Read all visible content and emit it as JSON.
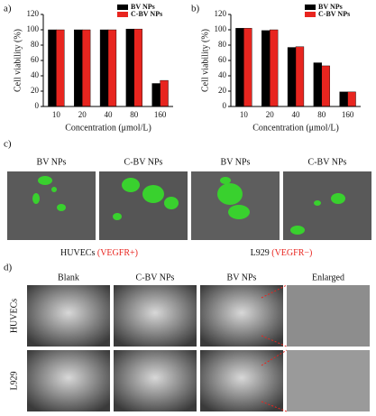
{
  "chart_data": [
    {
      "type": "bar",
      "panel": "a)",
      "categories": [
        "10",
        "20",
        "40",
        "80",
        "160"
      ],
      "series": [
        {
          "name": "BV NPs",
          "color": "#000000",
          "values": [
            100,
            100,
            100,
            101,
            30
          ]
        },
        {
          "name": "C-BV NPs",
          "color": "#e8251f",
          "values": [
            100,
            100,
            100,
            101,
            34
          ]
        }
      ],
      "ylim": [
        0,
        120
      ],
      "yticks": [
        0,
        20,
        40,
        60,
        80,
        100,
        120
      ],
      "ylabel": "Cell viability (%)",
      "xlabel": "Concentration (μmol/L)",
      "legend": "upper right"
    },
    {
      "type": "bar",
      "panel": "b)",
      "categories": [
        "10",
        "20",
        "40",
        "80",
        "160"
      ],
      "series": [
        {
          "name": "BV NPs",
          "color": "#000000",
          "values": [
            102,
            99,
            77,
            57,
            19
          ]
        },
        {
          "name": "C-BV NPs",
          "color": "#e8251f",
          "values": [
            102,
            100,
            78,
            53,
            19
          ]
        }
      ],
      "ylim": [
        0,
        120
      ],
      "yticks": [
        0,
        20,
        40,
        60,
        80,
        100,
        120
      ],
      "ylabel": "Cell viability (%)",
      "xlabel": "Concentration (μmol/L)",
      "legend": "upper right"
    }
  ],
  "panel_c": {
    "label": "c)",
    "columns": [
      "BV NPs",
      "C-BV NPs",
      "BV NPs",
      "C-BV NPs"
    ],
    "groups": [
      {
        "cell": "HUVECs",
        "marker": "(VEGFR+)"
      },
      {
        "cell": "L929",
        "marker": "(VEGFR−)"
      }
    ]
  },
  "panel_d": {
    "label": "d)",
    "columns": [
      "Blank",
      "C-BV NPs",
      "BV NPs",
      "Enlarged"
    ],
    "rows": [
      "HUVECs",
      "L929"
    ]
  }
}
